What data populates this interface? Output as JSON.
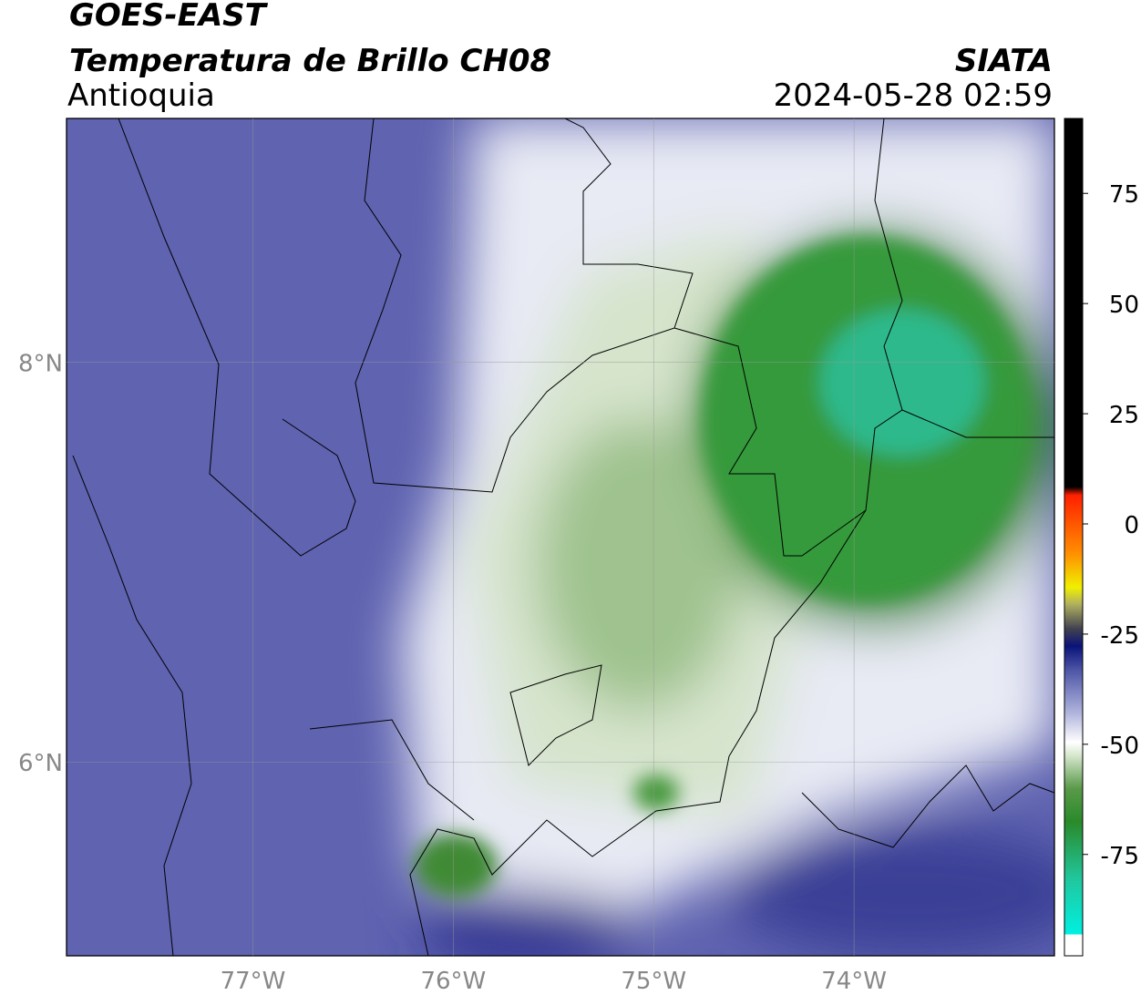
{
  "header": {
    "title": "GOES-EAST",
    "subtitle": "Temperatura de Brillo CH08",
    "region": "Antioquia",
    "source": "SIATA",
    "datetime": "2024-05-28 02:59"
  },
  "map": {
    "lonlim": [
      -77.93,
      -73.0
    ],
    "latlim": [
      5.03,
      9.22
    ],
    "lon_ticks": [
      {
        "value": -77,
        "label": "77°W"
      },
      {
        "value": -76,
        "label": "76°W"
      },
      {
        "value": -75,
        "label": "75°W"
      },
      {
        "value": -74,
        "label": "74°W"
      }
    ],
    "lat_ticks": [
      {
        "value": 8,
        "label": "8°N"
      },
      {
        "value": 6,
        "label": "6°N"
      }
    ]
  },
  "colorbar": {
    "lim": [
      -98,
      92
    ],
    "ticks": [
      75,
      50,
      25,
      0,
      -25,
      -50,
      -75
    ]
  }
}
